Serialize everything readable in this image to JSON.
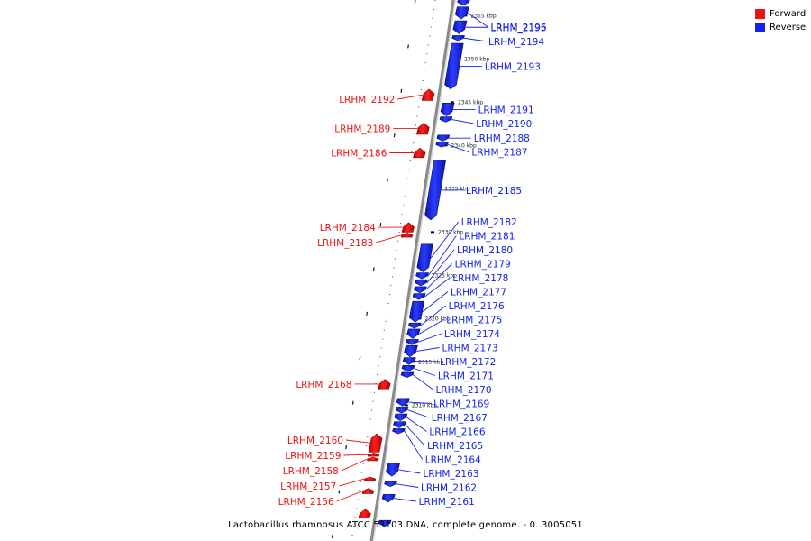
{
  "caption": "Lactobacillus rhamnosus ATCC 53103 DNA, complete genome. - 0..3005051",
  "legend": [
    {
      "label": "Forward",
      "color": "#ee1111"
    },
    {
      "label": "Reverse",
      "color": "#1122ee"
    }
  ],
  "colors": {
    "forward": "#ee1111",
    "reverse": "#1122ee",
    "backbone": "#8a8a8a"
  },
  "axis": {
    "ticks": [
      {
        "label": "2355 kbp",
        "pos": 2355000
      },
      {
        "label": "2350 kbp",
        "pos": 2350000
      },
      {
        "label": "2345 kbp",
        "pos": 2345000
      },
      {
        "label": "2340 kbp",
        "pos": 2340000
      },
      {
        "label": "2335 kbp",
        "pos": 2335000
      },
      {
        "label": "2330 kbp",
        "pos": 2330000
      },
      {
        "label": "2325 kbp",
        "pos": 2325000
      },
      {
        "label": "2320 kbp",
        "pos": 2320000
      },
      {
        "label": "2315 kbp",
        "pos": 2315000
      },
      {
        "label": "2310 kbp",
        "pos": 2310000
      }
    ]
  },
  "genes": [
    {
      "name": "",
      "strand": "reverse",
      "start": 2356200,
      "end": 2356900
    },
    {
      "name": "LRHM_2196",
      "strand": "reverse",
      "start": 2354600,
      "end": 2356000
    },
    {
      "name": "LRHM_2195",
      "strand": "reverse",
      "start": 2352900,
      "end": 2354400
    },
    {
      "name": "LRHM_2194",
      "strand": "reverse",
      "start": 2352100,
      "end": 2352700
    },
    {
      "name": "LRHM_2193",
      "strand": "reverse",
      "start": 2346500,
      "end": 2351800
    },
    {
      "name": "LRHM_2192",
      "strand": "forward",
      "start": 2345200,
      "end": 2346500
    },
    {
      "name": "LRHM_2191",
      "strand": "reverse",
      "start": 2343400,
      "end": 2344900
    },
    {
      "name": "LRHM_2190",
      "strand": "reverse",
      "start": 2342700,
      "end": 2343300
    },
    {
      "name": "LRHM_2189",
      "strand": "forward",
      "start": 2341300,
      "end": 2342600
    },
    {
      "name": "LRHM_2188",
      "strand": "reverse",
      "start": 2340500,
      "end": 2341200
    },
    {
      "name": "LRHM_2187",
      "strand": "reverse",
      "start": 2339800,
      "end": 2340400
    },
    {
      "name": "LRHM_2186",
      "strand": "forward",
      "start": 2338600,
      "end": 2339700
    },
    {
      "name": "LRHM_2185",
      "strand": "reverse",
      "start": 2331400,
      "end": 2338300
    },
    {
      "name": "LRHM_2184",
      "strand": "forward",
      "start": 2330000,
      "end": 2331100
    },
    {
      "name": "LRHM_2183",
      "strand": "forward",
      "start": 2329400,
      "end": 2329900
    },
    {
      "name": "LRHM_2182",
      "strand": "reverse",
      "start": 2325400,
      "end": 2328600
    },
    {
      "name": "LRHM_2181",
      "strand": "reverse",
      "start": 2324600,
      "end": 2325300
    },
    {
      "name": "LRHM_2180",
      "strand": "reverse",
      "start": 2323800,
      "end": 2324500
    },
    {
      "name": "LRHM_2179",
      "strand": "reverse",
      "start": 2323000,
      "end": 2323700
    },
    {
      "name": "LRHM_2178",
      "strand": "reverse",
      "start": 2322200,
      "end": 2322900
    },
    {
      "name": "LRHM_2177",
      "strand": "reverse",
      "start": 2319600,
      "end": 2322000
    },
    {
      "name": "LRHM_2176",
      "strand": "reverse",
      "start": 2318900,
      "end": 2319500
    },
    {
      "name": "LRHM_2175",
      "strand": "reverse",
      "start": 2317700,
      "end": 2318800
    },
    {
      "name": "LRHM_2174",
      "strand": "reverse",
      "start": 2317000,
      "end": 2317600
    },
    {
      "name": "LRHM_2173",
      "strand": "reverse",
      "start": 2315600,
      "end": 2316900
    },
    {
      "name": "LRHM_2172",
      "strand": "reverse",
      "start": 2314700,
      "end": 2315500
    },
    {
      "name": "LRHM_2171",
      "strand": "reverse",
      "start": 2313900,
      "end": 2314600
    },
    {
      "name": "LRHM_2170",
      "strand": "reverse",
      "start": 2313200,
      "end": 2313800
    },
    {
      "name": "LRHM_2168",
      "strand": "forward",
      "start": 2311900,
      "end": 2313000
    },
    {
      "name": "LRHM_2169",
      "strand": "reverse",
      "start": 2309900,
      "end": 2310800
    },
    {
      "name": "LRHM_2167",
      "strand": "reverse",
      "start": 2309100,
      "end": 2309800
    },
    {
      "name": "LRHM_2166",
      "strand": "reverse",
      "start": 2308200,
      "end": 2309000
    },
    {
      "name": "LRHM_2165",
      "strand": "reverse",
      "start": 2307400,
      "end": 2308100
    },
    {
      "name": "LRHM_2164",
      "strand": "reverse",
      "start": 2306700,
      "end": 2307300
    },
    {
      "name": "LRHM_2160",
      "strand": "forward",
      "start": 2304600,
      "end": 2306700
    },
    {
      "name": "LRHM_2159",
      "strand": "forward",
      "start": 2304100,
      "end": 2304500
    },
    {
      "name": "LRHM_2158",
      "strand": "forward",
      "start": 2303600,
      "end": 2304000
    },
    {
      "name": "LRHM_2163",
      "strand": "reverse",
      "start": 2301800,
      "end": 2303300
    },
    {
      "name": "LRHM_2157",
      "strand": "forward",
      "start": 2301300,
      "end": 2301700
    },
    {
      "name": "LRHM_2162",
      "strand": "reverse",
      "start": 2300600,
      "end": 2301200
    },
    {
      "name": "LRHM_2156",
      "strand": "forward",
      "start": 2299800,
      "end": 2300400
    },
    {
      "name": "LRHM_2161",
      "strand": "reverse",
      "start": 2298800,
      "end": 2299700
    },
    {
      "name": "",
      "strand": "forward",
      "start": 2297000,
      "end": 2298000
    },
    {
      "name": "",
      "strand": "reverse",
      "start": 2296000,
      "end": 2296700
    }
  ]
}
